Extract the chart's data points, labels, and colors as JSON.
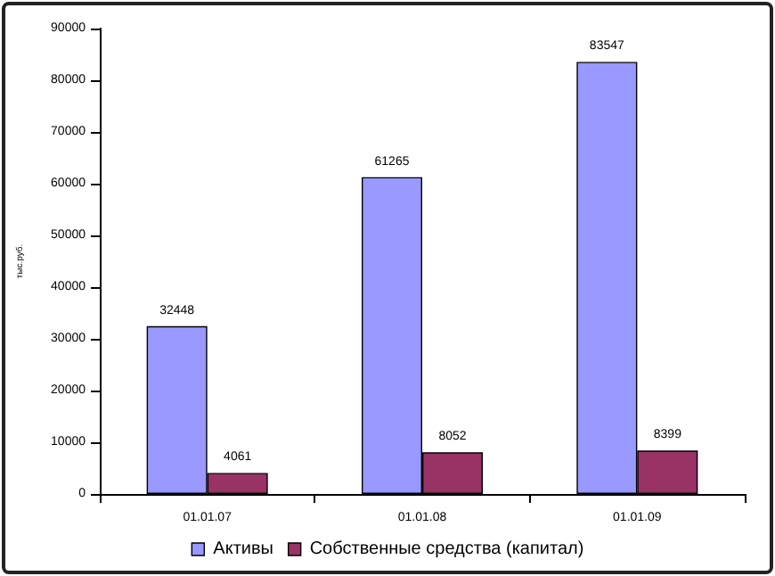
{
  "chart_data": {
    "type": "bar",
    "ylabel": "тыс.руб.",
    "categories": [
      "01.01.07",
      "01.01.08",
      "01.01.09"
    ],
    "series": [
      {
        "name": "Активы",
        "color": "#9999ff",
        "values": [
          32448,
          61265,
          83547
        ]
      },
      {
        "name": "Собственные средства (капитал)",
        "color": "#993366",
        "values": [
          4061,
          8052,
          8399
        ]
      }
    ],
    "ylim": [
      0,
      90000
    ],
    "yticks": [
      0,
      10000,
      20000,
      30000,
      40000,
      50000,
      60000,
      70000,
      80000,
      90000
    ],
    "grid": false,
    "legend": "bottom",
    "data_labels": true
  }
}
